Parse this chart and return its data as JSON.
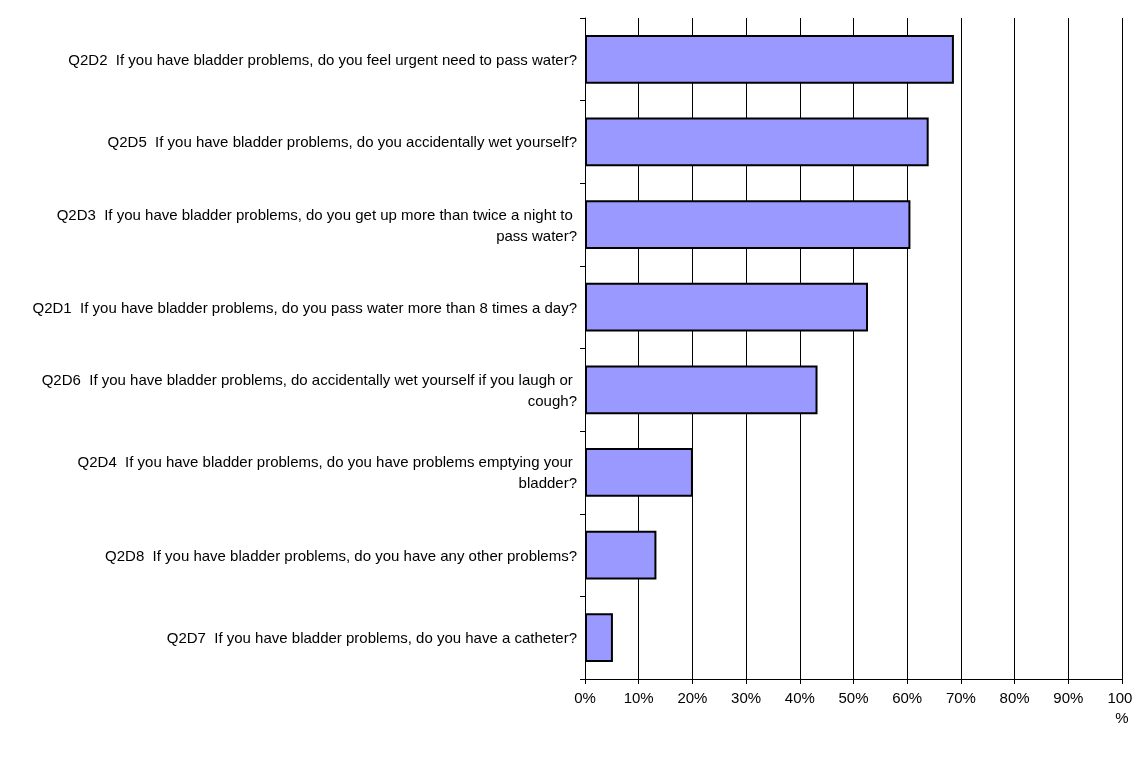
{
  "chart_data": {
    "type": "bar",
    "orientation": "horizontal",
    "categories": [
      "Q2D2  If you have bladder problems, do you feel urgent need to pass water?",
      "Q2D5  If you have bladder problems, do you accidentally wet yourself?",
      "Q2D3  If you have bladder problems, do you get up more than twice a night to pass water?",
      "Q2D1  If you have bladder problems, do you pass water more than 8 times a day?",
      "Q2D6  If you have bladder problems, do accidentally wet yourself if you laugh or cough?",
      "Q2D4  If you have bladder problems, do you have problems emptying your bladder?",
      "Q2D8  If you have bladder problems, do you have any other problems?",
      "Q2D7  If you have bladder problems, do you have a catheter?"
    ],
    "values": [
      68.7,
      64.0,
      60.6,
      52.7,
      43.3,
      20.1,
      13.3,
      5.2
    ],
    "color": "#9999ff",
    "xlim": [
      0,
      100
    ],
    "xticks": [
      {
        "value": 0,
        "label": "0%"
      },
      {
        "value": 10,
        "label": "10%"
      },
      {
        "value": 20,
        "label": "20%"
      },
      {
        "value": 30,
        "label": "30%"
      },
      {
        "value": 40,
        "label": "40%"
      },
      {
        "value": 50,
        "label": "50%"
      },
      {
        "value": 60,
        "label": "60%"
      },
      {
        "value": 70,
        "label": "70%"
      },
      {
        "value": 80,
        "label": "80%"
      },
      {
        "value": 90,
        "label": "90%"
      },
      {
        "value": 100,
        "label": "100 %"
      }
    ],
    "grid": "x"
  }
}
